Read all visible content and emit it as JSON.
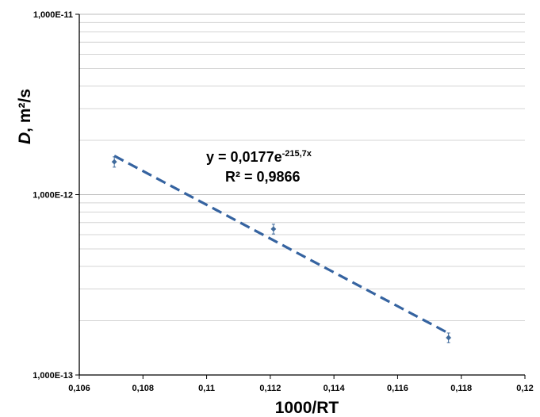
{
  "chart_data": {
    "type": "scatter",
    "xlabel": "1000/RT",
    "ylabel_var": "D",
    "ylabel_unit": ", m²/s",
    "y_scale": "log",
    "xlim": [
      0.106,
      0.12
    ],
    "ylim": [
      1e-13,
      1e-11
    ],
    "x_ticks": [
      0.106,
      0.108,
      0.11,
      0.112,
      0.114,
      0.116,
      0.118,
      0.12
    ],
    "x_tick_labels": [
      "0,106",
      "0,108",
      "0,11",
      "0,112",
      "0,114",
      "0,116",
      "0,118",
      "0,12"
    ],
    "y_ticks": [
      1e-13,
      1e-12,
      1e-11
    ],
    "y_tick_labels": [
      "1,000E-13",
      "1,000E-12",
      "1,000E-11"
    ],
    "grid": "horizontal minor (log)",
    "points": [
      {
        "x": 0.1071,
        "y": 1.52e-12,
        "err": 1e-13
      },
      {
        "x": 0.1121,
        "y": 6.45e-13,
        "err": 4e-14
      },
      {
        "x": 0.1176,
        "y": 1.61e-13,
        "err": 1e-14
      }
    ],
    "trendline": {
      "type": "exponential",
      "a": 0.0177,
      "b": -215.7,
      "x_range": [
        0.1071,
        0.1176
      ],
      "equation_prefix": "y = 0,0177e",
      "equation_exponent": "-215,7x",
      "r2_label": "R² = 0,9866"
    },
    "colors": {
      "series": "#3f6a9c",
      "trend": "#3563a0",
      "grid": "#d4d4d4",
      "axis": "#000000"
    }
  }
}
